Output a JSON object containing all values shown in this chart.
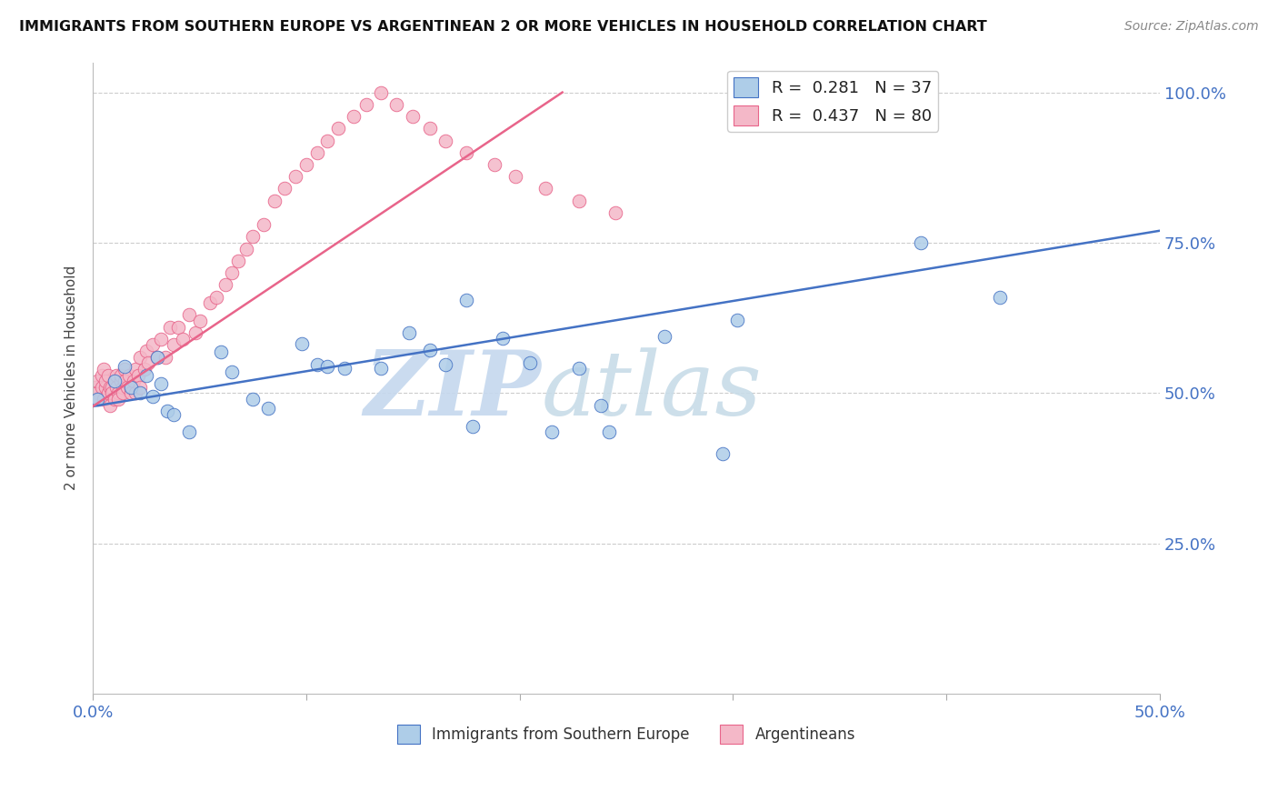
{
  "title": "IMMIGRANTS FROM SOUTHERN EUROPE VS ARGENTINEAN 2 OR MORE VEHICLES IN HOUSEHOLD CORRELATION CHART",
  "source": "Source: ZipAtlas.com",
  "ylabel": "2 or more Vehicles in Household",
  "xmin": 0.0,
  "xmax": 0.5,
  "ymin": 0.0,
  "ymax": 1.05,
  "blue_color": "#aecde8",
  "pink_color": "#f4b8c8",
  "blue_line_color": "#4472c4",
  "pink_line_color": "#e8648a",
  "blue_R": 0.281,
  "blue_N": 37,
  "pink_R": 0.437,
  "pink_N": 80,
  "legend_blue_series": "Immigrants from Southern Europe",
  "legend_pink_series": "Argentineans",
  "watermark_text": "ZIP",
  "watermark_text2": "atlas",
  "watermark_color1": "#c5d8ee",
  "watermark_color2": "#c8dce8",
  "blue_x": [
    0.002,
    0.01,
    0.015,
    0.018,
    0.022,
    0.025,
    0.028,
    0.03,
    0.032,
    0.035,
    0.038,
    0.045,
    0.06,
    0.065,
    0.075,
    0.082,
    0.098,
    0.105,
    0.11,
    0.118,
    0.148,
    0.158,
    0.165,
    0.178,
    0.192,
    0.205,
    0.215,
    0.238,
    0.242,
    0.295,
    0.175,
    0.135,
    0.228,
    0.302,
    0.388,
    0.425,
    0.268
  ],
  "blue_y": [
    0.49,
    0.52,
    0.545,
    0.51,
    0.5,
    0.53,
    0.495,
    0.56,
    0.515,
    0.47,
    0.465,
    0.435,
    0.568,
    0.535,
    0.49,
    0.475,
    0.582,
    0.548,
    0.545,
    0.542,
    0.6,
    0.572,
    0.548,
    0.445,
    0.592,
    0.55,
    0.435,
    0.48,
    0.435,
    0.4,
    0.655,
    0.542,
    0.542,
    0.622,
    0.75,
    0.66,
    0.595
  ],
  "pink_x": [
    0.001,
    0.002,
    0.002,
    0.003,
    0.004,
    0.004,
    0.005,
    0.005,
    0.006,
    0.006,
    0.007,
    0.007,
    0.008,
    0.008,
    0.009,
    0.009,
    0.01,
    0.01,
    0.011,
    0.011,
    0.012,
    0.012,
    0.013,
    0.013,
    0.014,
    0.014,
    0.015,
    0.015,
    0.016,
    0.017,
    0.018,
    0.018,
    0.019,
    0.02,
    0.02,
    0.021,
    0.022,
    0.022,
    0.024,
    0.025,
    0.026,
    0.028,
    0.03,
    0.032,
    0.034,
    0.036,
    0.038,
    0.04,
    0.042,
    0.045,
    0.048,
    0.05,
    0.055,
    0.058,
    0.062,
    0.065,
    0.068,
    0.072,
    0.075,
    0.08,
    0.085,
    0.09,
    0.095,
    0.1,
    0.105,
    0.11,
    0.115,
    0.122,
    0.128,
    0.135,
    0.142,
    0.15,
    0.158,
    0.165,
    0.175,
    0.188,
    0.198,
    0.212,
    0.228,
    0.245
  ],
  "pink_y": [
    0.51,
    0.5,
    0.52,
    0.49,
    0.53,
    0.51,
    0.54,
    0.49,
    0.51,
    0.52,
    0.5,
    0.53,
    0.51,
    0.48,
    0.51,
    0.5,
    0.52,
    0.49,
    0.53,
    0.51,
    0.5,
    0.49,
    0.52,
    0.53,
    0.51,
    0.5,
    0.54,
    0.52,
    0.51,
    0.53,
    0.51,
    0.5,
    0.52,
    0.54,
    0.5,
    0.53,
    0.51,
    0.56,
    0.54,
    0.57,
    0.55,
    0.58,
    0.56,
    0.59,
    0.56,
    0.61,
    0.58,
    0.61,
    0.59,
    0.63,
    0.6,
    0.62,
    0.65,
    0.66,
    0.68,
    0.7,
    0.72,
    0.74,
    0.76,
    0.78,
    0.82,
    0.84,
    0.86,
    0.88,
    0.9,
    0.92,
    0.94,
    0.96,
    0.98,
    1.0,
    0.98,
    0.96,
    0.94,
    0.92,
    0.9,
    0.88,
    0.86,
    0.84,
    0.82,
    0.8
  ]
}
